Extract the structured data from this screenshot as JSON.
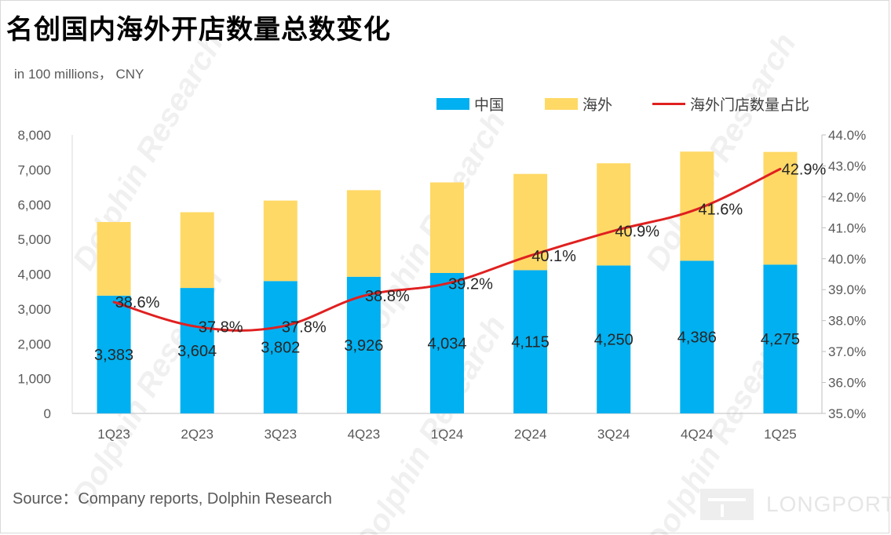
{
  "header": {
    "title": "名创国内海外开店数量总数变化",
    "unit": "in 100 millions， CNY"
  },
  "footer": {
    "source": "Source：Company reports, Dolphin Research",
    "logo_text": "LONGPORT"
  },
  "watermark_text": "Dolphin Research",
  "colors": {
    "china": "#00B0F0",
    "overseas": "#FFD966",
    "ratio_line": "#E02020",
    "axis": "#595959"
  },
  "chart_data": {
    "type": "bar",
    "stacked": true,
    "categories": [
      "1Q23",
      "2Q23",
      "3Q23",
      "4Q23",
      "1Q24",
      "2Q24",
      "3Q24",
      "4Q24",
      "1Q25"
    ],
    "series": [
      {
        "name": "中国",
        "axis": "left",
        "values": [
          3383,
          3604,
          3802,
          3926,
          4034,
          4115,
          4250,
          4386,
          4275
        ],
        "labels": [
          "3,383",
          "3,604",
          "3,802",
          "3,926",
          "4,034",
          "4,115",
          "4,250",
          "4,386",
          "4,275"
        ]
      },
      {
        "name": "海外",
        "axis": "left",
        "values": [
          2115,
          2176,
          2313,
          2487,
          2602,
          2765,
          2935,
          3135,
          3237
        ]
      },
      {
        "name": "海外门店数量占比",
        "type": "line",
        "axis": "right",
        "values": [
          38.6,
          37.8,
          37.8,
          38.8,
          39.2,
          40.1,
          40.9,
          41.6,
          42.9
        ],
        "labels": [
          "38.6%",
          "37.8%",
          "37.8%",
          "38.8%",
          "39.2%",
          "40.1%",
          "40.9%",
          "41.6%",
          "42.9%"
        ]
      }
    ],
    "ylim": [
      0,
      8000
    ],
    "yticks": [
      "0",
      "1,000",
      "2,000",
      "3,000",
      "4,000",
      "5,000",
      "6,000",
      "7,000",
      "8,000"
    ],
    "y2lim": [
      35.0,
      44.0
    ],
    "y2ticks": [
      "35.0%",
      "36.0%",
      "37.0%",
      "38.0%",
      "39.0%",
      "40.0%",
      "41.0%",
      "42.0%",
      "43.0%",
      "44.0%"
    ],
    "legend_position": "top-right",
    "grid": false
  }
}
